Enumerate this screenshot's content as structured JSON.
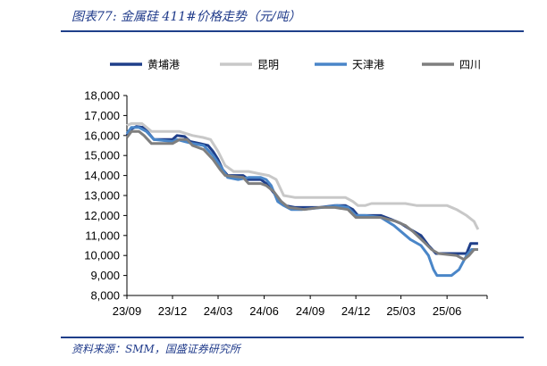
{
  "header": {
    "title": "图表77: 金属硅 411#价格走势（元/吨）"
  },
  "footer": {
    "source": "资料来源：SMM，国盛证券研究所"
  },
  "colors": {
    "rule": "#1f3f8a"
  },
  "chart_data": {
    "type": "line",
    "title": "图表77: 金属硅 411#价格走势（元/吨）",
    "xlabel": "",
    "ylabel": "",
    "ylim": [
      8000,
      18000
    ],
    "yticks": [
      8000,
      9000,
      10000,
      11000,
      12000,
      13000,
      14000,
      15000,
      16000,
      17000,
      18000
    ],
    "ytick_labels": [
      "8,000",
      "9,000",
      "10,000",
      "11,000",
      "12,000",
      "13,000",
      "14,000",
      "15,000",
      "16,000",
      "17,000",
      "18,000"
    ],
    "xlim": [
      "2023-09-01",
      "2025-08-20"
    ],
    "xticks": [
      "2023-09-01",
      "2023-12-01",
      "2024-03-01",
      "2024-06-01",
      "2024-09-01",
      "2024-12-01",
      "2025-03-01",
      "2025-06-01"
    ],
    "xtick_labels": [
      "23/09",
      "23/12",
      "24/03",
      "24/06",
      "24/09",
      "24/12",
      "25/03",
      "25/06"
    ],
    "legend_position": "top",
    "grid": false,
    "series": [
      {
        "name": "黄埔港",
        "color": "#1f3f8a",
        "width": 3,
        "points": [
          [
            "2023-09-01",
            16000
          ],
          [
            "2023-09-08",
            16300
          ],
          [
            "2023-09-20",
            16450
          ],
          [
            "2023-10-05",
            16400
          ],
          [
            "2023-10-15",
            16100
          ],
          [
            "2023-10-25",
            15800
          ],
          [
            "2023-12-01",
            15800
          ],
          [
            "2023-12-10",
            16000
          ],
          [
            "2023-12-25",
            15950
          ],
          [
            "2024-01-05",
            15700
          ],
          [
            "2024-01-25",
            15600
          ],
          [
            "2024-02-10",
            15500
          ],
          [
            "2024-02-20",
            15200
          ],
          [
            "2024-03-01",
            14800
          ],
          [
            "2024-03-10",
            14300
          ],
          [
            "2024-03-20",
            14000
          ],
          [
            "2024-04-20",
            14000
          ],
          [
            "2024-05-01",
            13800
          ],
          [
            "2024-05-25",
            13800
          ],
          [
            "2024-06-05",
            13600
          ],
          [
            "2024-06-15",
            13300
          ],
          [
            "2024-07-01",
            12800
          ],
          [
            "2024-07-12",
            12500
          ],
          [
            "2024-08-01",
            12400
          ],
          [
            "2024-09-20",
            12400
          ],
          [
            "2024-10-20",
            12500
          ],
          [
            "2024-11-10",
            12500
          ],
          [
            "2024-11-25",
            12300
          ],
          [
            "2024-12-05",
            12000
          ],
          [
            "2025-01-20",
            12000
          ],
          [
            "2025-02-10",
            11800
          ],
          [
            "2025-03-01",
            11600
          ],
          [
            "2025-03-20",
            11300
          ],
          [
            "2025-04-10",
            11000
          ],
          [
            "2025-04-25",
            10500
          ],
          [
            "2025-05-10",
            10100
          ],
          [
            "2025-06-10",
            10100
          ],
          [
            "2025-07-10",
            10100
          ],
          [
            "2025-07-18",
            10600
          ],
          [
            "2025-07-25",
            10600
          ],
          [
            "2025-08-02",
            10600
          ]
        ]
      },
      {
        "name": "昆明",
        "color": "#c8c8c8",
        "width": 3,
        "points": [
          [
            "2023-09-01",
            16500
          ],
          [
            "2023-09-10",
            16600
          ],
          [
            "2023-10-01",
            16600
          ],
          [
            "2023-10-20",
            16200
          ],
          [
            "2023-12-01",
            16200
          ],
          [
            "2023-12-15",
            16200
          ],
          [
            "2024-01-10",
            16000
          ],
          [
            "2024-01-31",
            15900
          ],
          [
            "2024-02-15",
            15800
          ],
          [
            "2024-03-01",
            15200
          ],
          [
            "2024-03-15",
            14500
          ],
          [
            "2024-04-01",
            14200
          ],
          [
            "2024-05-01",
            14200
          ],
          [
            "2024-05-20",
            14100
          ],
          [
            "2024-06-10",
            14000
          ],
          [
            "2024-06-25",
            13800
          ],
          [
            "2024-07-10",
            13000
          ],
          [
            "2024-08-01",
            12900
          ],
          [
            "2024-10-01",
            12900
          ],
          [
            "2024-11-10",
            12900
          ],
          [
            "2024-11-25",
            12700
          ],
          [
            "2024-12-05",
            12500
          ],
          [
            "2024-12-20",
            12500
          ],
          [
            "2025-01-01",
            12600
          ],
          [
            "2025-02-01",
            12600
          ],
          [
            "2025-03-10",
            12600
          ],
          [
            "2025-04-01",
            12500
          ],
          [
            "2025-05-01",
            12500
          ],
          [
            "2025-06-01",
            12500
          ],
          [
            "2025-06-20",
            12300
          ],
          [
            "2025-07-10",
            12000
          ],
          [
            "2025-07-25",
            11700
          ],
          [
            "2025-08-02",
            11300
          ]
        ]
      },
      {
        "name": "天津港",
        "color": "#4a86c8",
        "width": 3,
        "points": [
          [
            "2023-09-01",
            16100
          ],
          [
            "2023-09-10",
            16400
          ],
          [
            "2023-09-25",
            16400
          ],
          [
            "2023-10-10",
            16200
          ],
          [
            "2023-10-25",
            15800
          ],
          [
            "2023-12-01",
            15700
          ],
          [
            "2023-12-10",
            15800
          ],
          [
            "2023-12-25",
            15700
          ],
          [
            "2024-01-10",
            15600
          ],
          [
            "2024-02-01",
            15500
          ],
          [
            "2024-02-20",
            15000
          ],
          [
            "2024-03-05",
            14500
          ],
          [
            "2024-03-20",
            13900
          ],
          [
            "2024-04-10",
            13800
          ],
          [
            "2024-05-01",
            13900
          ],
          [
            "2024-05-25",
            13900
          ],
          [
            "2024-06-05",
            13800
          ],
          [
            "2024-06-15",
            13500
          ],
          [
            "2024-06-28",
            12700
          ],
          [
            "2024-07-10",
            12500
          ],
          [
            "2024-07-25",
            12300
          ],
          [
            "2024-08-15",
            12300
          ],
          [
            "2024-09-25",
            12400
          ],
          [
            "2024-10-25",
            12500
          ],
          [
            "2024-11-15",
            12400
          ],
          [
            "2024-12-01",
            12000
          ],
          [
            "2024-12-20",
            12000
          ],
          [
            "2025-01-20",
            11900
          ],
          [
            "2025-02-15",
            11500
          ],
          [
            "2025-03-01",
            11200
          ],
          [
            "2025-03-20",
            10800
          ],
          [
            "2025-04-10",
            10500
          ],
          [
            "2025-04-25",
            10000
          ],
          [
            "2025-05-05",
            9300
          ],
          [
            "2025-05-12",
            9000
          ],
          [
            "2025-06-10",
            9000
          ],
          [
            "2025-06-25",
            9300
          ],
          [
            "2025-07-10",
            10000
          ],
          [
            "2025-07-20",
            10300
          ],
          [
            "2025-08-02",
            10300
          ]
        ]
      },
      {
        "name": "四川",
        "color": "#7f7f7f",
        "width": 3,
        "points": [
          [
            "2023-09-01",
            15900
          ],
          [
            "2023-09-10",
            16200
          ],
          [
            "2023-09-25",
            16200
          ],
          [
            "2023-10-05",
            16000
          ],
          [
            "2023-10-20",
            15600
          ],
          [
            "2023-12-01",
            15600
          ],
          [
            "2023-12-15",
            15800
          ],
          [
            "2023-12-30",
            15800
          ],
          [
            "2024-01-10",
            15500
          ],
          [
            "2024-02-01",
            15300
          ],
          [
            "2024-02-20",
            14800
          ],
          [
            "2024-03-05",
            14300
          ],
          [
            "2024-03-15",
            14000
          ],
          [
            "2024-04-20",
            13900
          ],
          [
            "2024-05-01",
            13600
          ],
          [
            "2024-05-25",
            13600
          ],
          [
            "2024-06-05",
            13500
          ],
          [
            "2024-06-20",
            13200
          ],
          [
            "2024-07-05",
            12700
          ],
          [
            "2024-07-20",
            12400
          ],
          [
            "2024-08-20",
            12300
          ],
          [
            "2024-09-20",
            12400
          ],
          [
            "2024-10-20",
            12400
          ],
          [
            "2024-11-15",
            12300
          ],
          [
            "2024-12-01",
            11900
          ],
          [
            "2025-01-20",
            11900
          ],
          [
            "2025-02-20",
            11700
          ],
          [
            "2025-03-10",
            11500
          ],
          [
            "2025-03-25",
            11200
          ],
          [
            "2025-04-15",
            10700
          ],
          [
            "2025-05-01",
            10300
          ],
          [
            "2025-05-15",
            10100
          ],
          [
            "2025-06-20",
            10000
          ],
          [
            "2025-07-05",
            9800
          ],
          [
            "2025-07-15",
            10000
          ],
          [
            "2025-07-25",
            10300
          ],
          [
            "2025-08-02",
            10300
          ]
        ]
      }
    ]
  }
}
